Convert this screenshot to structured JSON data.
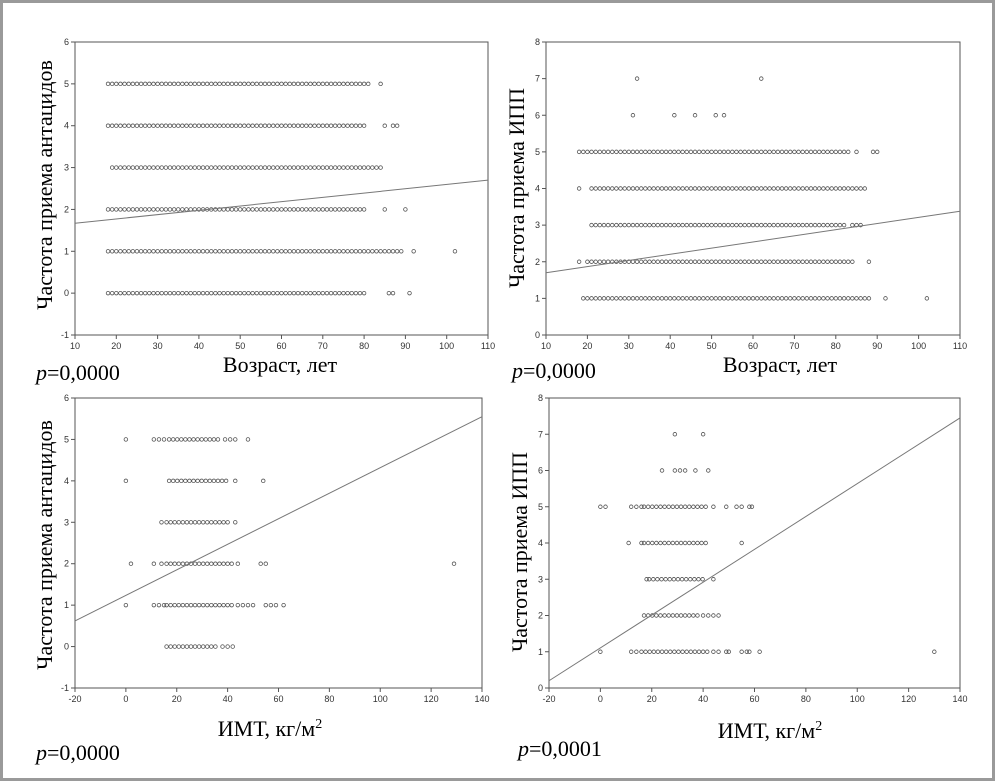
{
  "chart_data": [
    {
      "type": "scatter",
      "xlabel": "Возраст, лет",
      "ylabel": "Частота приема антацидов",
      "p_value": "p=0,0000",
      "xlim": [
        10,
        110
      ],
      "ylim": [
        -1,
        6
      ],
      "xticks": [
        "10",
        "20",
        "30",
        "40",
        "50",
        "60",
        "70",
        "80",
        "90",
        "100",
        "110"
      ],
      "yticks": [
        "-1",
        "0",
        "1",
        "2",
        "3",
        "4",
        "5",
        "6"
      ],
      "rows": [
        {
          "y": 0,
          "x_min": 18,
          "x_max": 80,
          "outliers": [
            86,
            87,
            91
          ]
        },
        {
          "y": 1,
          "x_min": 18,
          "x_max": 89,
          "outliers": [
            92,
            102
          ]
        },
        {
          "y": 2,
          "x_min": 18,
          "x_max": 80,
          "outliers": [
            85,
            90
          ]
        },
        {
          "y": 3,
          "x_min": 19,
          "x_max": 84,
          "outliers": []
        },
        {
          "y": 4,
          "x_min": 18,
          "x_max": 80,
          "outliers": [
            85,
            87,
            88
          ]
        },
        {
          "y": 5,
          "x_min": 18,
          "x_max": 81,
          "outliers": [
            84
          ]
        }
      ],
      "regression": {
        "x": [
          10,
          110
        ],
        "y": [
          1.67,
          2.7
        ]
      }
    },
    {
      "type": "scatter",
      "xlabel": "Возраст, лет",
      "ylabel": "Частота приема ИПП",
      "p_value": "p=0,0000",
      "xlim": [
        10,
        110
      ],
      "ylim": [
        0,
        8
      ],
      "xticks": [
        "10",
        "20",
        "30",
        "40",
        "50",
        "60",
        "70",
        "80",
        "90",
        "100",
        "110"
      ],
      "yticks": [
        "0",
        "1",
        "2",
        "3",
        "4",
        "5",
        "6",
        "7",
        "8"
      ],
      "rows": [
        {
          "y": 1,
          "x_min": 19,
          "x_max": 88,
          "outliers": [
            92,
            102
          ]
        },
        {
          "y": 2,
          "x_min": 20,
          "x_max": 84,
          "outliers": [
            18,
            88
          ]
        },
        {
          "y": 3,
          "x_min": 21,
          "x_max": 82,
          "outliers": [
            84,
            85,
            86
          ]
        },
        {
          "y": 4,
          "x_min": 21,
          "x_max": 87,
          "outliers": [
            18
          ]
        },
        {
          "y": 5,
          "x_min": 18,
          "x_max": 83,
          "outliers": [
            85,
            89,
            90
          ]
        },
        {
          "y": 6,
          "x_min": 31,
          "x_max": 31,
          "outliers": [
            41,
            46,
            51,
            53
          ]
        },
        {
          "y": 7,
          "x_min": 32,
          "x_max": 32,
          "outliers": [
            62
          ]
        }
      ],
      "regression": {
        "x": [
          10,
          110
        ],
        "y": [
          1.7,
          3.38
        ]
      }
    },
    {
      "type": "scatter",
      "xlabel": "ИМТ, кг/м",
      "xlabel_sup": "2",
      "ylabel": "Частота приема антацидов",
      "p_value": "p=0,0000",
      "xlim": [
        -20,
        140
      ],
      "ylim": [
        -1,
        6
      ],
      "xticks": [
        "-20",
        "0",
        "20",
        "40",
        "60",
        "80",
        "100",
        "120",
        "140"
      ],
      "yticks": [
        "-1",
        "0",
        "1",
        "2",
        "3",
        "4",
        "5",
        "6"
      ],
      "rows": [
        {
          "y": 0,
          "x_min": 16,
          "x_max": 36,
          "outliers": [
            38,
            40,
            42
          ]
        },
        {
          "y": 1,
          "x_min": 16,
          "x_max": 42,
          "outliers": [
            0,
            11,
            13,
            15,
            44,
            46,
            48,
            50,
            55,
            57,
            59,
            62
          ]
        },
        {
          "y": 2,
          "x_min": 16,
          "x_max": 42,
          "outliers": [
            2,
            11,
            14,
            44,
            53,
            55,
            129
          ]
        },
        {
          "y": 3,
          "x_min": 16,
          "x_max": 40,
          "outliers": [
            14,
            43
          ]
        },
        {
          "y": 4,
          "x_min": 17,
          "x_max": 40,
          "outliers": [
            0,
            43,
            54
          ]
        },
        {
          "y": 5,
          "x_min": 17,
          "x_max": 37,
          "outliers": [
            0,
            11,
            13,
            15,
            39,
            41,
            43,
            48
          ]
        }
      ],
      "regression": {
        "x": [
          -20,
          140
        ],
        "y": [
          0.62,
          5.55
        ]
      }
    },
    {
      "type": "scatter",
      "xlabel": "ИМТ, кг/м",
      "xlabel_sup": "2",
      "ylabel": "Частота приема ИПП",
      "p_value": "p=0,0001",
      "xlim": [
        -20,
        140
      ],
      "ylim": [
        0,
        8
      ],
      "xticks": [
        "-20",
        "0",
        "20",
        "40",
        "60",
        "80",
        "100",
        "120",
        "140"
      ],
      "yticks": [
        "0",
        "1",
        "2",
        "3",
        "4",
        "5",
        "6",
        "7",
        "8"
      ],
      "rows": [
        {
          "y": 1,
          "x_min": 16,
          "x_max": 42,
          "outliers": [
            0,
            12,
            14,
            44,
            46,
            49,
            50,
            55,
            57,
            58,
            62,
            130
          ]
        },
        {
          "y": 2,
          "x_min": 17,
          "x_max": 38,
          "outliers": [
            40,
            42,
            44,
            46
          ]
        },
        {
          "y": 3,
          "x_min": 19,
          "x_max": 40,
          "outliers": [
            18,
            44
          ]
        },
        {
          "y": 4,
          "x_min": 17,
          "x_max": 42,
          "outliers": [
            11,
            16,
            55
          ]
        },
        {
          "y": 5,
          "x_min": 17,
          "x_max": 42,
          "outliers": [
            0,
            2,
            12,
            14,
            16,
            44,
            49,
            53,
            55,
            58,
            59
          ]
        },
        {
          "y": 6,
          "x_min": 24,
          "x_max": 24,
          "outliers": [
            29,
            31,
            33,
            37,
            42
          ]
        },
        {
          "y": 7,
          "x_min": 29,
          "x_max": 29,
          "outliers": [
            40
          ]
        }
      ],
      "regression": {
        "x": [
          -20,
          140
        ],
        "y": [
          0.2,
          7.45
        ]
      }
    }
  ]
}
